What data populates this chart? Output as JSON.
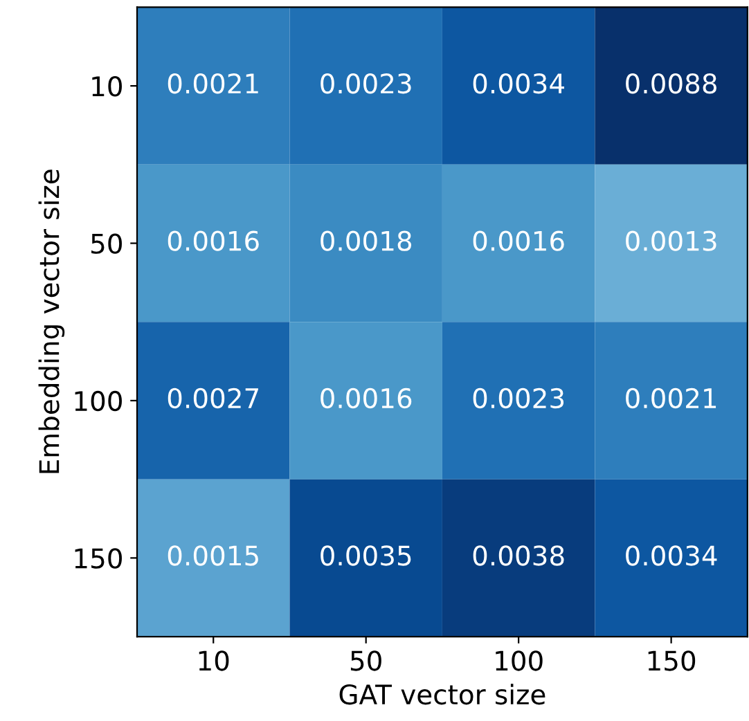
{
  "chart_data": {
    "type": "heatmap",
    "xlabel": "GAT vector size",
    "ylabel": "Embedding vector size",
    "categories": [
      "10",
      "50",
      "100",
      "150"
    ],
    "y_categories": [
      "10",
      "50",
      "100",
      "150"
    ],
    "cells": [
      [
        0.0021,
        0.0023,
        0.0034,
        0.0088
      ],
      [
        0.0016,
        0.0018,
        0.0016,
        0.0013
      ],
      [
        0.0027,
        0.0016,
        0.0023,
        0.0021
      ],
      [
        0.0015,
        0.0035,
        0.0038,
        0.0034
      ]
    ],
    "data_labels": true
  }
}
